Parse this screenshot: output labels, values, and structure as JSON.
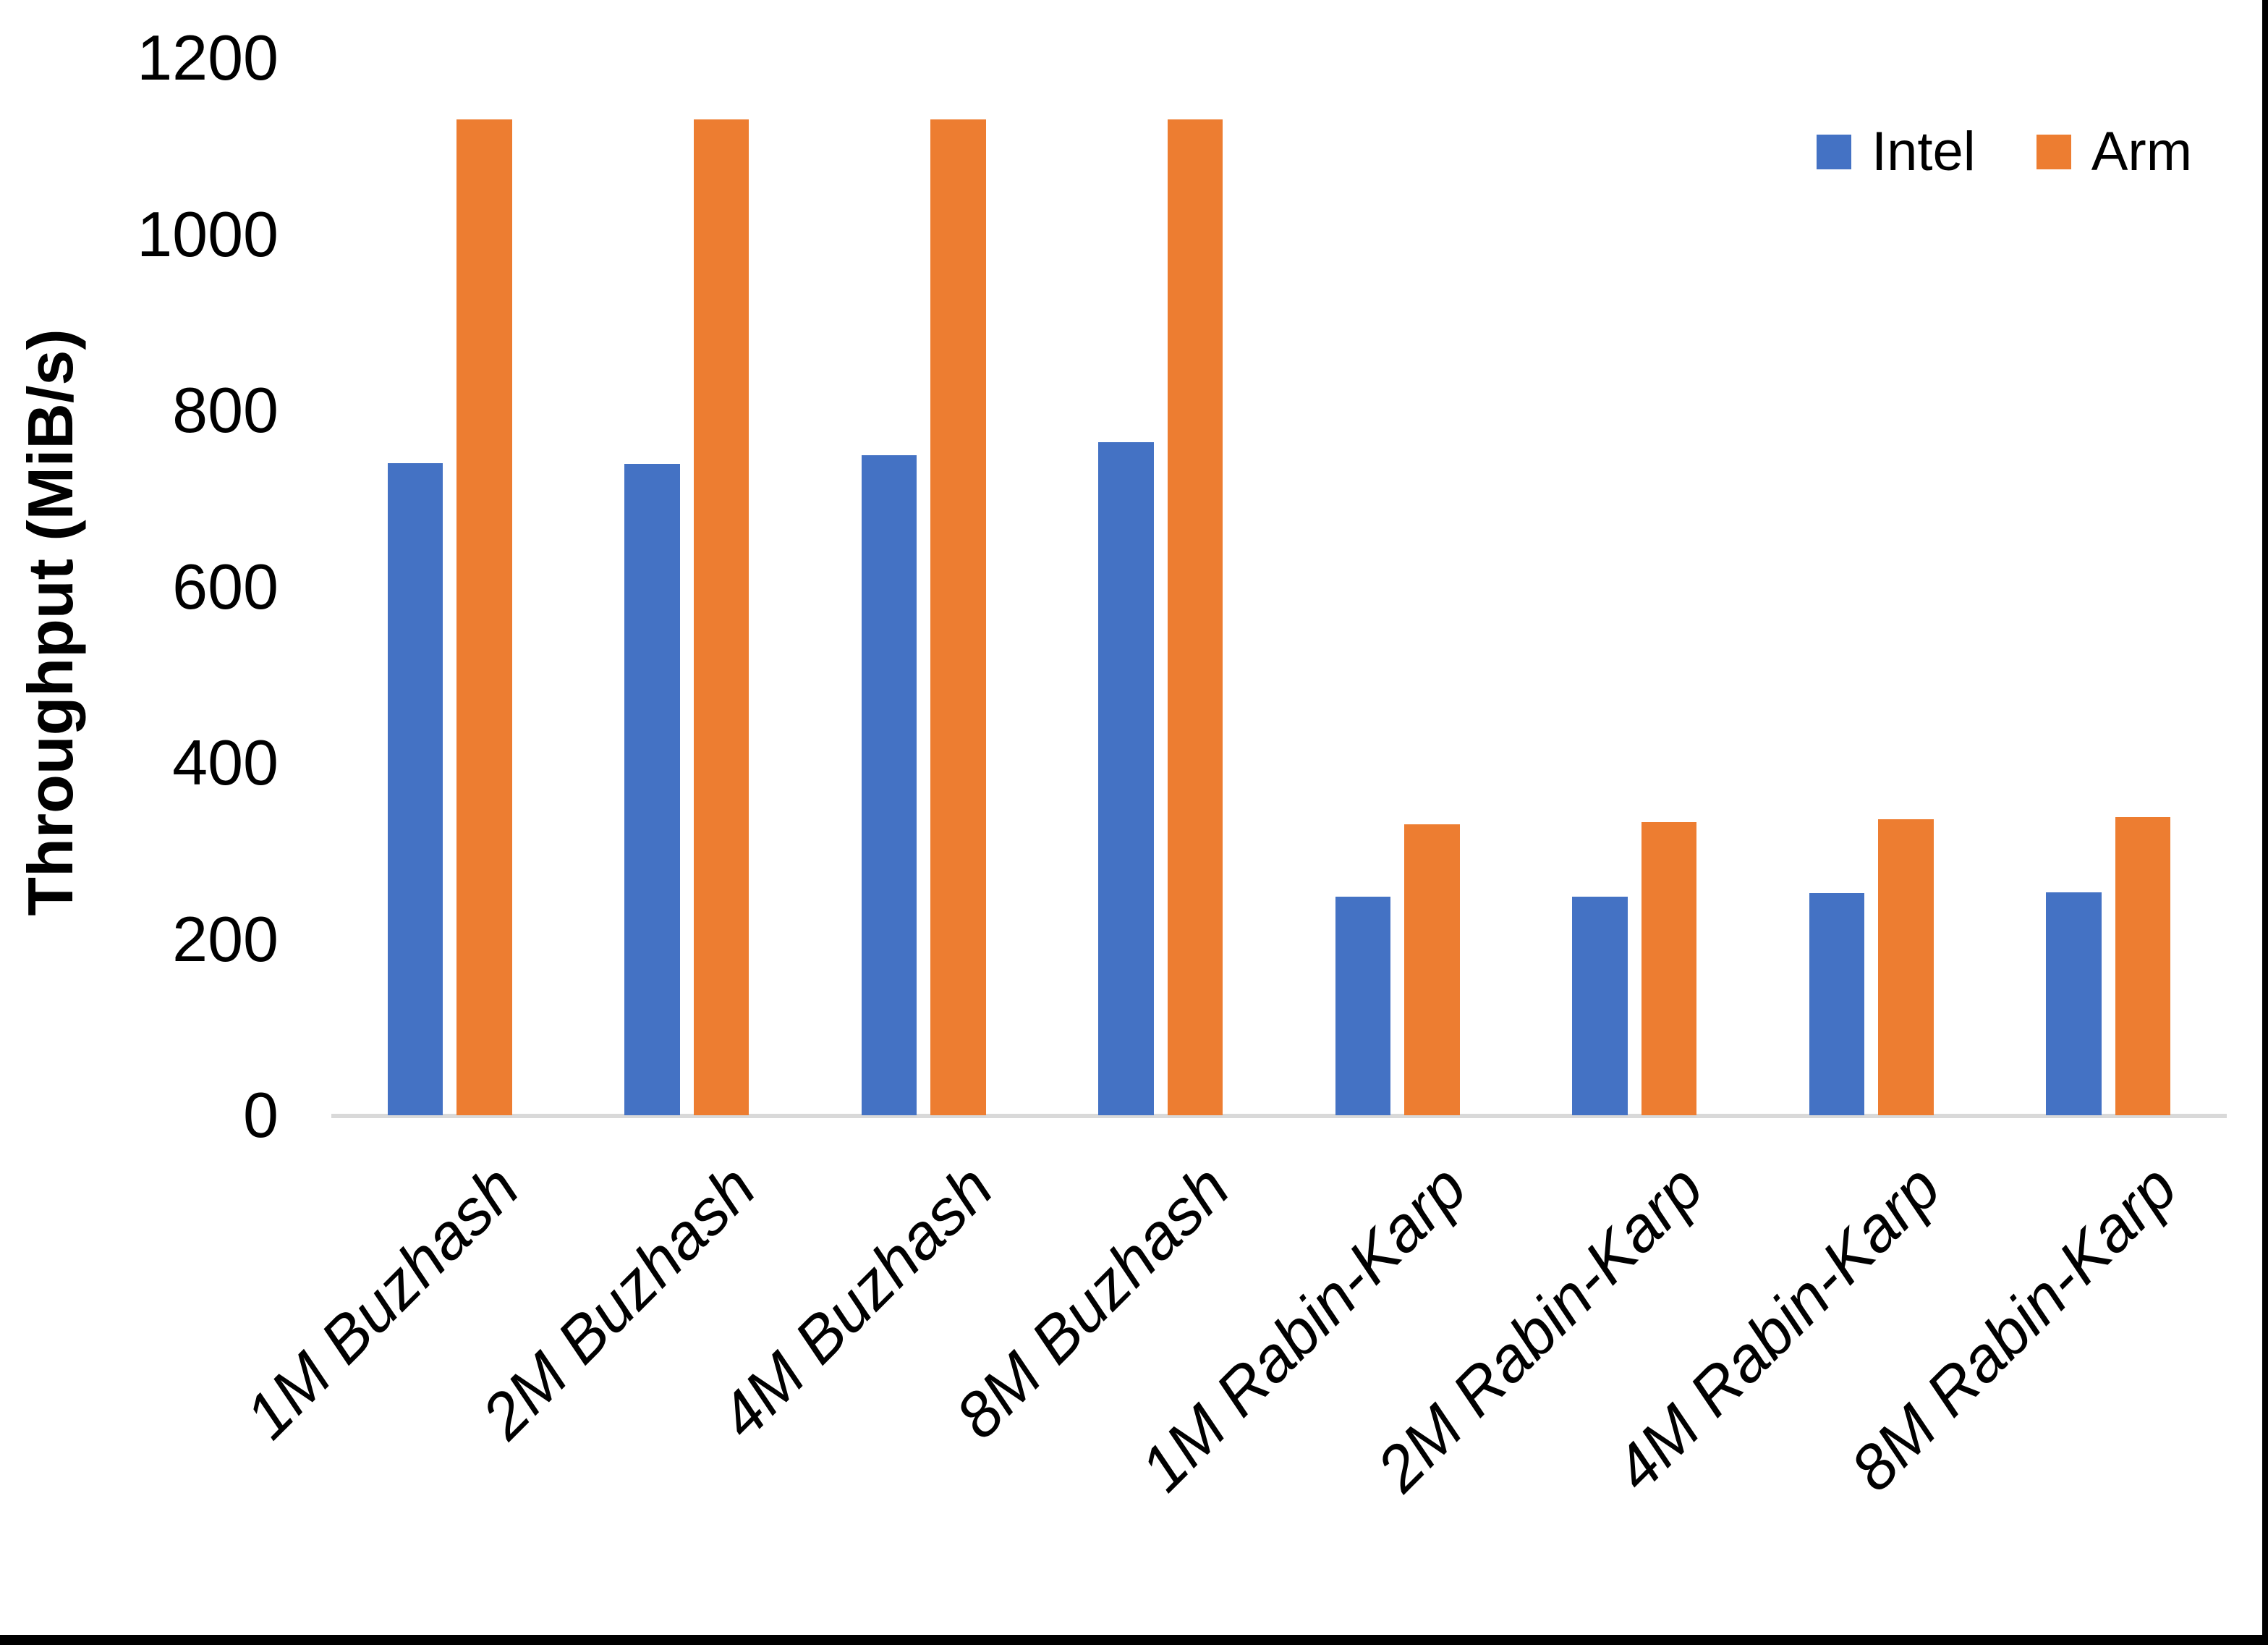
{
  "chart_data": {
    "type": "bar",
    "title": "",
    "xlabel": "",
    "ylabel": "Throughput (MiB/s)",
    "ylim": [
      0,
      1200
    ],
    "yticks": [
      0,
      200,
      400,
      600,
      800,
      1000,
      1200
    ],
    "grid": false,
    "legend_position": "top-right",
    "bar_orientation": "vertical-grouped",
    "categories": [
      "1M Buzhash",
      "2M Buzhash",
      "4M Buzhash",
      "8M Buzhash",
      "1M Rabin-Karp",
      "2M Rabin-Karp",
      "4M Rabin-Karp",
      "8M Rabin-Karp"
    ],
    "series": [
      {
        "name": "Intel",
        "color": "#4472C4",
        "values": [
          740,
          739,
          749,
          764,
          248,
          248,
          252,
          253
        ]
      },
      {
        "name": "Arm",
        "color": "#ED7D31",
        "values": [
          1130,
          1130,
          1130,
          1130,
          330,
          333,
          336,
          338
        ]
      }
    ]
  },
  "colors": {
    "background": "#FFFFFF",
    "text": "#000000",
    "axis_line": "#D9D9D9",
    "edge_border": "#000000",
    "intel": "#4472C4",
    "arm": "#ED7D31"
  }
}
